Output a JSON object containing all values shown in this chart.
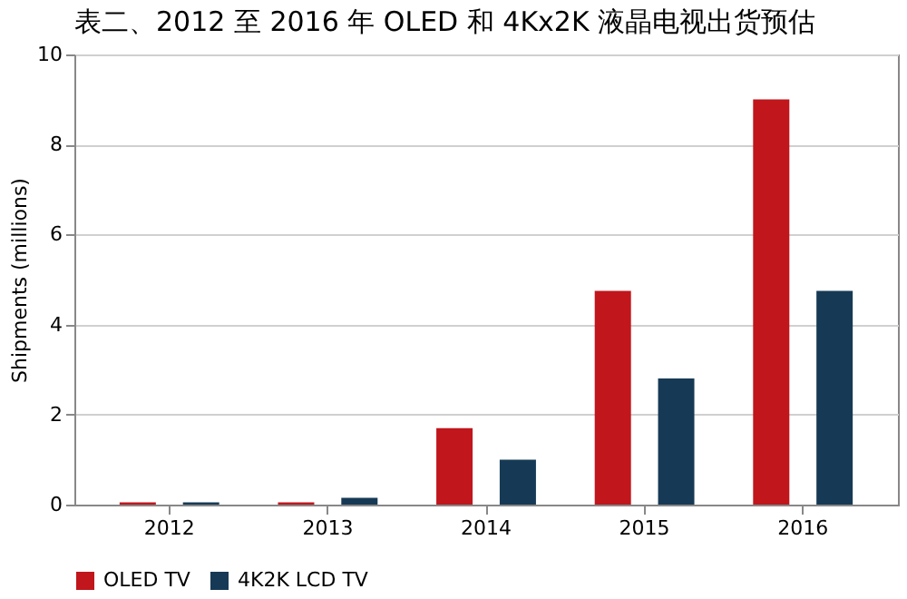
{
  "chart_data": {
    "type": "bar",
    "title": "表二、2012 至 2016 年 OLED 和 4Kx2K 液晶电视出货预估",
    "ylabel": "Shipments (millions)",
    "categories": [
      "2012",
      "2013",
      "2014",
      "2015",
      "2016"
    ],
    "series": [
      {
        "name": "OLED TV",
        "color": "#c0161c",
        "values": [
          0.05,
          0.05,
          1.7,
          4.75,
          9.0
        ]
      },
      {
        "name": "4K2K LCD TV",
        "color": "#163a55",
        "values": [
          0.05,
          0.15,
          1.0,
          2.8,
          4.75
        ]
      }
    ],
    "ylim": [
      0,
      10
    ],
    "yticks": [
      0,
      2,
      4,
      6,
      8,
      10
    ],
    "grid": "y",
    "legend": "bottom"
  }
}
